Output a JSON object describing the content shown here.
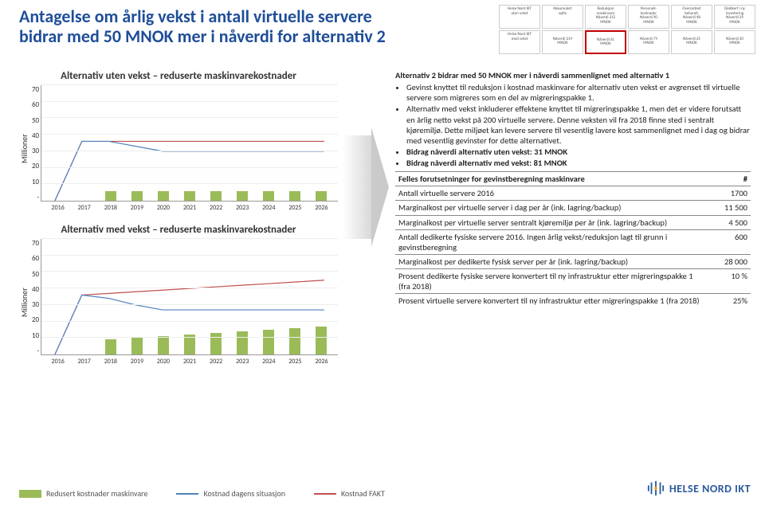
{
  "title": "Antagelse om årlig vekst i antall virtuelle servere  bidrar med 50 MNOK mer i nåverdi for alternativ 2",
  "thumbnails": [
    {
      "t": "Helse Nord IKT\\nuten vekst",
      "v": ""
    },
    {
      "t": "Akkumulert\\noptiv",
      "v": ""
    },
    {
      "t": "Reduksjon\\nmaskinvare",
      "v": "Nåverdi 212\\nMNOK"
    },
    {
      "t": "Personell-\\nkostnader",
      "v": "Nåverdi 90\\nMNOK"
    },
    {
      "t": "Overordnet\\nbehandl.",
      "v": "Nåverdi 48\\nMNOK"
    },
    {
      "t": "Dedikert i ny\\ninvestering",
      "v": "Nåverdi 29\\nMNOK"
    },
    {
      "t": "Helse Nord IKT\\nmed vekst",
      "v": ""
    },
    {
      "t": "",
      "v": "Nåverdi 214\\nMNOK"
    },
    {
      "t": "",
      "v": "Nåverdi 61\\nMNOK",
      "hl": true
    },
    {
      "t": "",
      "v": "Nåverdi 79\\nMNOK"
    },
    {
      "t": "",
      "v": "Nåverdi 25\\nMNOK"
    },
    {
      "t": "",
      "v": "Nåverdi 20\\nMNOK"
    }
  ],
  "chart1": {
    "title": "Alternativ uten vekst – reduserte maskinvarekostnader",
    "ylabel": "Millioner",
    "ymax": 70,
    "ystep": 10,
    "years": [
      "2016",
      "2017",
      "2018",
      "2019",
      "2020",
      "2021",
      "2022",
      "2023",
      "2024",
      "2025",
      "2026"
    ],
    "bars": [
      0,
      0,
      6,
      6,
      6,
      6,
      6,
      6,
      6,
      6,
      6
    ],
    "line_now": [
      0,
      36,
      36,
      33,
      30,
      30,
      30,
      30,
      30,
      30,
      30
    ],
    "line_fakt": [
      0,
      36,
      36,
      36,
      36,
      36,
      36,
      36,
      36,
      36,
      36
    ],
    "colors": {
      "bar": "#9bbb59",
      "now": "#4f81bd",
      "fakt": "#c0504d",
      "grid": "#eeeeee"
    }
  },
  "chart2": {
    "title": "Alternativ med vekst – reduserte maskinvarekostnader",
    "ylabel": "Millioner",
    "ymax": 70,
    "ystep": 10,
    "years": [
      "2016",
      "2017",
      "2018",
      "2019",
      "2020",
      "2021",
      "2022",
      "2023",
      "2024",
      "2025",
      "2026"
    ],
    "bars": [
      0,
      0,
      9,
      10,
      11,
      12,
      13,
      14,
      15,
      16,
      17
    ],
    "line_now": [
      0,
      36,
      34,
      30,
      27,
      27,
      27,
      27,
      27,
      27,
      27
    ],
    "line_fakt": [
      0,
      36,
      37,
      38,
      39,
      40,
      41,
      42,
      43,
      44,
      45
    ],
    "colors": {
      "bar": "#9bbb59",
      "now": "#4f81bd",
      "fakt": "#c0504d",
      "grid": "#eeeeee"
    }
  },
  "right_title": "Alternativ 2 bidrar med 50 MNOK mer i nåverdi sammenlignet med alternativ 1",
  "bullets": [
    "Gevinst  knyttet til reduksjon i kostnad maskinvare for alternativ uten vekst er avgrenset til virtuelle servere som migreres som en del av migreringspakke 1.",
    "Alternativ med vekst inkluderer effektene knyttet til migreringspakke 1, men det er videre forutsatt en årlig netto vekst på 200 virtuelle servere. Denne veksten vil fra 2018 finne sted i sentralt kjøremiljø. Dette miljøet kan levere servere til vesentlig lavere kost sammenlignet med i dag og bidrar med vesentlig gevinster for dette alternativet.",
    "Bidrag nåverdi alternativ uten vekst: 31 MNOK",
    "Bidrag nåverdi alternativ med vekst: 81 MNOK"
  ],
  "table_header": [
    "Felles forutsetninger for gevinstberegning maskinvare",
    "#"
  ],
  "table_rows": [
    [
      "Antall virtuelle servere 2016",
      "1700"
    ],
    [
      "Marginalkost per virtuelle server i dag per år (ink. lagring/backup)",
      "11 500"
    ],
    [
      "Marginalkost per virtuelle server sentralt kjøremiljø per år (ink. lagring/backup)",
      "4 500"
    ],
    [
      "Antall dedikerte fysiske servere 2016. Ingen årlig vekst/reduksjon lagt til grunn i gevinstberegning",
      "600"
    ],
    [
      "Marginalkost per dedikerte fysisk server per år (ink. lagring/backup)",
      "28 000"
    ],
    [
      "Prosent dedikerte fysiske servere konvertert til ny infrastruktur etter migreringspakke 1 (fra 2018)",
      "10 %"
    ],
    [
      "Prosent virtuelle servere konvertert til ny infrastruktur etter migreringspakke 1 (fra 2018)",
      "25%"
    ]
  ],
  "legend": [
    {
      "label": "Redusert kostnader maskinvare",
      "type": "bar",
      "color": "#9bbb59"
    },
    {
      "label": "Kostnad dagens situasjon",
      "type": "line",
      "color": "#4f81bd"
    },
    {
      "label": "Kostnad FAKT",
      "type": "line",
      "color": "#c0504d"
    }
  ],
  "logo_text": "HELSE NORD IKT"
}
